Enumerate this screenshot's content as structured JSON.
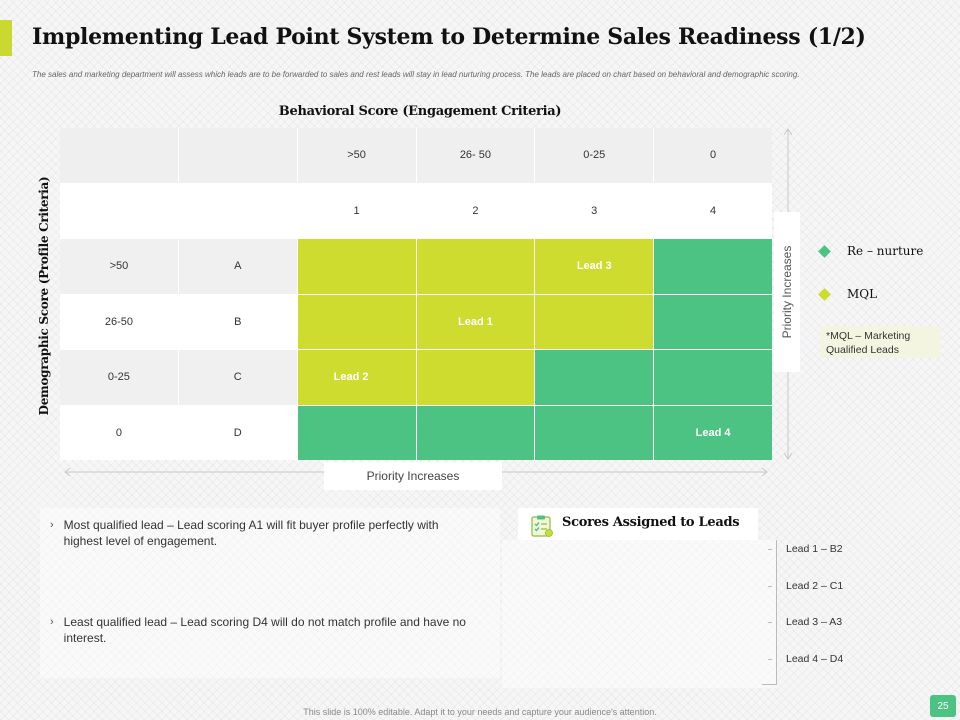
{
  "slide": {
    "title": "Implementing Lead Point System to Determine Sales Readiness (1/2)",
    "subtitle": "The sales and marketing department  will assess which leads are to be forwarded to sales and rest leads will stay in lead nurturing process. The leads are placed on chart based on behavioral and demographic  scoring.",
    "page_number": "25",
    "footer": "This slide is 100% editable. Adapt it to your needs and capture your audience's attention.",
    "accent_color": "#c9d92f"
  },
  "matrix": {
    "behavioral_heading": "Behavioral Score (Engagement Criteria)",
    "demographic_heading": "Demographic Score (Profile Criteria)",
    "behavioral_ranges": [
      ">50",
      "26- 50",
      "0-25",
      "0"
    ],
    "behavioral_ranks": [
      "1",
      "2",
      "3",
      "4"
    ],
    "rows": [
      {
        "range": ">50",
        "grade": "A",
        "cells": [
          "mql",
          "mql",
          "mql",
          "renurture"
        ]
      },
      {
        "range": "26-50",
        "grade": "B",
        "cells": [
          "mql",
          "mql",
          "mql",
          "renurture"
        ]
      },
      {
        "range": "0-25",
        "grade": "C",
        "cells": [
          "mql",
          "mql",
          "renurture",
          "renurture"
        ]
      },
      {
        "range": "0",
        "grade": "D",
        "cells": [
          "renurture",
          "renurture",
          "renurture",
          "renurture"
        ]
      }
    ],
    "leads": {
      "lead1": "Lead 1",
      "lead2": "Lead 2",
      "lead3": "Lead 3",
      "lead4": "Lead 4"
    },
    "priority_bottom": "Priority Increases",
    "priority_right": "Priority Increases",
    "colors": {
      "mql": "#cddc2e",
      "renurture": "#4cc283"
    }
  },
  "legend": {
    "items": [
      {
        "label": "Re – nurture",
        "color": "#4cc283"
      },
      {
        "label": "MQL",
        "color": "#cddc2e"
      }
    ],
    "note": "*MQL – Marketing Qualified Leads"
  },
  "bullets": [
    "Most qualified lead –  Lead scoring A1 will fit buyer profile perfectly with highest level  of engagement.",
    "Least qualified lead – Lead scoring D4 will do not match profile and have  no interest."
  ],
  "scores": {
    "title": "Scores Assigned to Leads",
    "icon": "clipboard-checklist-icon",
    "items": [
      "Lead 1 – B2",
      "Lead 2 – C1",
      "Lead 3 – A3",
      "Lead 4 – D4"
    ]
  }
}
